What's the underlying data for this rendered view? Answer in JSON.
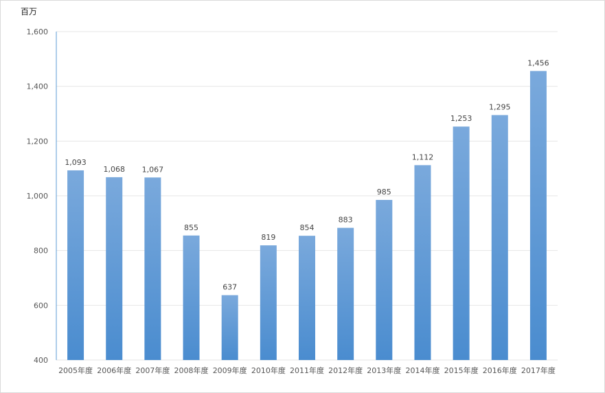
{
  "chart_data": {
    "type": "bar",
    "unit_label": "百万",
    "categories": [
      "2005年度",
      "2006年度",
      "2007年度",
      "2008年度",
      "2009年度",
      "2010年度",
      "2011年度",
      "2012年度",
      "2013年度",
      "2014年度",
      "2015年度",
      "2016年度",
      "2017年度"
    ],
    "values": [
      1093,
      1068,
      1067,
      855,
      637,
      819,
      854,
      883,
      985,
      1112,
      1253,
      1295,
      1456
    ],
    "data_labels": [
      "1,093",
      "1,068",
      "1,067",
      "855",
      "637",
      "819",
      "854",
      "883",
      "985",
      "1,112",
      "1,253",
      "1,295",
      "1,456"
    ],
    "ylim": [
      400,
      1600
    ],
    "yticks": [
      400,
      600,
      800,
      1000,
      1200,
      1400,
      1600
    ],
    "ytick_labels": [
      "400",
      "600",
      "800",
      "1,000",
      "1,200",
      "1,400",
      "1,600"
    ],
    "grid": true,
    "colors": {
      "bar_top": "#7aa9dc",
      "bar_bottom": "#4a8ccf",
      "axis": "#5b9bd5",
      "grid": "#e6e6e6"
    }
  }
}
